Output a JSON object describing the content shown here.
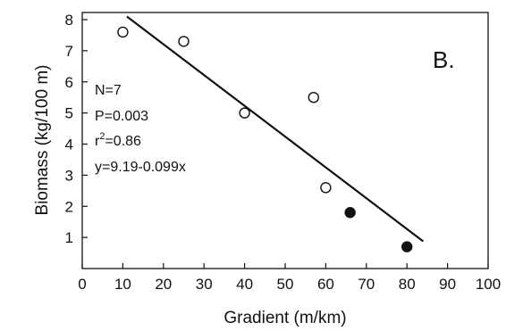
{
  "chart_data": {
    "type": "scatter",
    "panel_label": "B.",
    "xlabel": "Gradient (m/km)",
    "ylabel": "Biomass (kg/100 m)",
    "xlim": [
      0,
      100
    ],
    "ylim": [
      0,
      8
    ],
    "x_ticks": [
      0,
      10,
      20,
      30,
      40,
      50,
      60,
      70,
      80,
      90,
      100
    ],
    "y_ticks": [
      1,
      2,
      3,
      4,
      5,
      6,
      7,
      8
    ],
    "grid": false,
    "series": [
      {
        "marker": "open-circle",
        "points": [
          [
            10,
            7.6
          ],
          [
            25,
            7.3
          ],
          [
            40,
            5.0
          ],
          [
            57,
            5.5
          ],
          [
            60,
            2.6
          ]
        ]
      },
      {
        "marker": "filled-circle",
        "points": [
          [
            66,
            1.8
          ],
          [
            80,
            0.7
          ]
        ]
      }
    ],
    "fit_line": {
      "intercept": 9.19,
      "slope": -0.099,
      "x_range": [
        11,
        84
      ]
    },
    "annotations": {
      "n": "N=7",
      "p": "P=0.003",
      "r2_base": "r",
      "r2_sup": "2",
      "r2_rest": "=0.86",
      "equation": "y=9.19-0.099x"
    }
  }
}
